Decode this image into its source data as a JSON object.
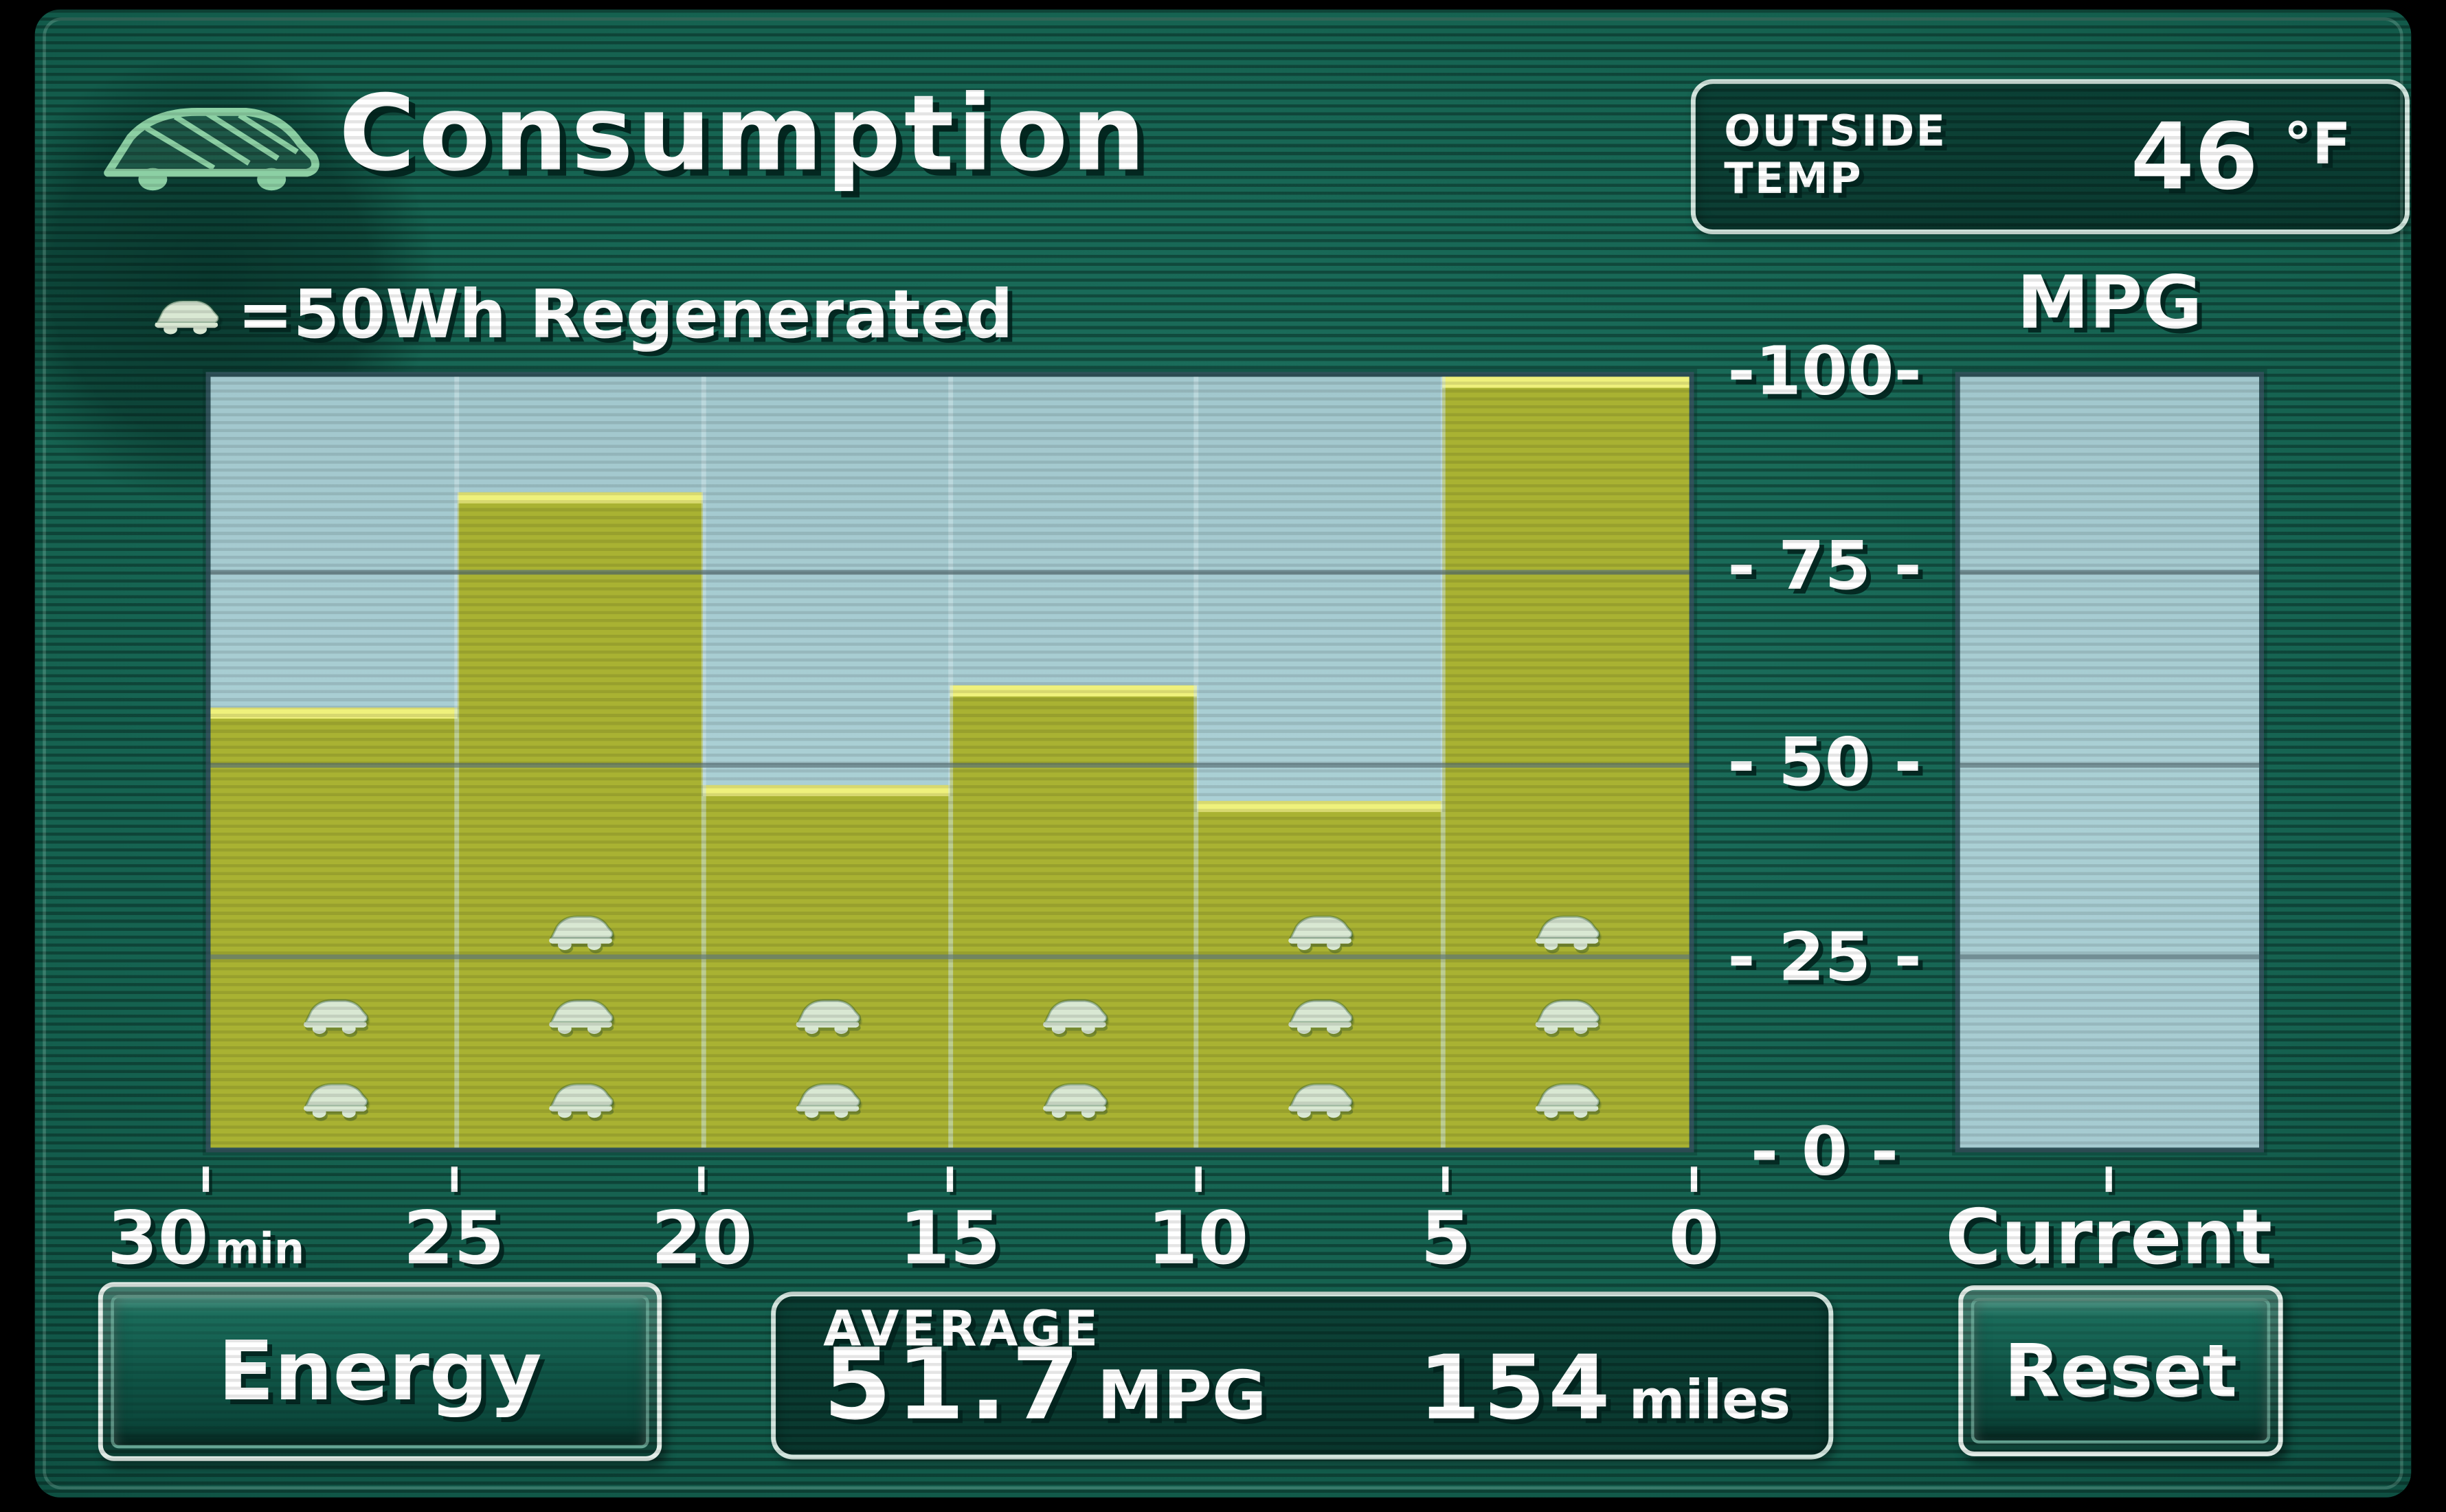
{
  "header": {
    "title": "Consumption",
    "legend_text": "=50Wh Regenerated"
  },
  "outside_temp": {
    "label_top": "OUTSIDE",
    "label_bottom": "TEMP",
    "value": "46",
    "unit": "°F"
  },
  "mpg_gauge": {
    "axis_label": "MPG",
    "label": "Current"
  },
  "chart_data": {
    "type": "bar",
    "title": "Consumption",
    "ylabel": "MPG",
    "ylim": [
      0,
      100
    ],
    "yticks": [
      0,
      25,
      50,
      75,
      100
    ],
    "ytick_labels": [
      "- 0 -",
      "- 25 -",
      "- 50 -",
      "- 75 -",
      "-100-"
    ],
    "x_axis_labels": [
      {
        "text": "30",
        "suffix": "min"
      },
      {
        "text": "25",
        "suffix": ""
      },
      {
        "text": "20",
        "suffix": ""
      },
      {
        "text": "15",
        "suffix": ""
      },
      {
        "text": "10",
        "suffix": ""
      },
      {
        "text": "5",
        "suffix": ""
      },
      {
        "text": "0",
        "suffix": ""
      }
    ],
    "categories": [
      "30-25 min",
      "25-20 min",
      "20-15 min",
      "15-10 min",
      "10-5 min",
      "5-0 min"
    ],
    "values": [
      57,
      85,
      47,
      60,
      45,
      100
    ],
    "regen_icons_per_bar": [
      2,
      3,
      2,
      2,
      3,
      3
    ],
    "regen_icon_unit": "50Wh",
    "grid": true,
    "legend_position": "top-left"
  },
  "average": {
    "label": "AVERAGE",
    "mpg_value": "51.7",
    "mpg_unit": "MPG",
    "distance_value": "154",
    "distance_unit": "miles"
  },
  "buttons": {
    "energy": "Energy",
    "reset": "Reset"
  },
  "icons": {
    "logo": "hybrid-car-logo-icon",
    "legend": "regen-car-icon"
  },
  "colors": {
    "bar": "#a9b232",
    "bar_cap": "#eff17c",
    "chart_bg": "#a7ccd2",
    "screen_bg": "#11594b",
    "text": "#ffffff",
    "regen_icon": "#d9e8d3"
  }
}
